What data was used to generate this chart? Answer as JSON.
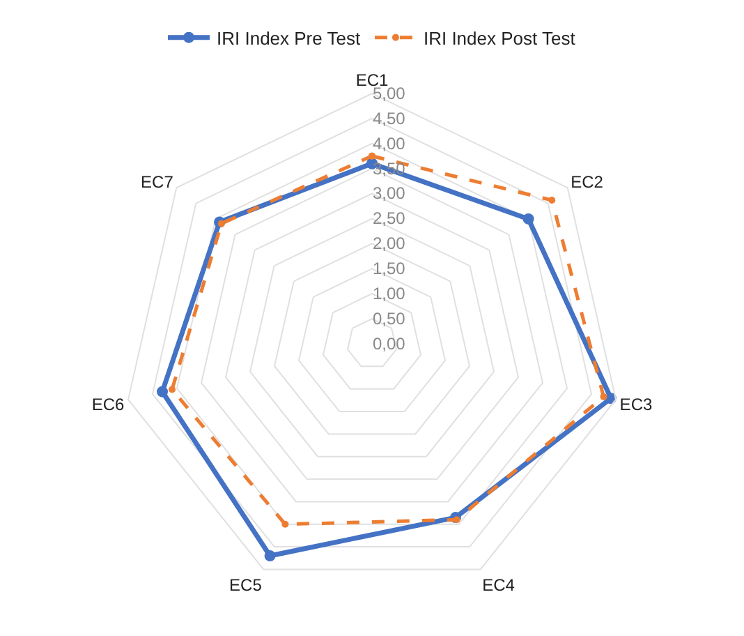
{
  "chart_data": {
    "type": "radar",
    "categories": [
      "EC1",
      "EC2",
      "EC3",
      "EC4",
      "EC5",
      "EC6",
      "EC7"
    ],
    "series": [
      {
        "name": "IRI Index Pre Test",
        "color": "#4472c4",
        "values": [
          3.6,
          4.0,
          4.9,
          3.85,
          4.7,
          4.3,
          3.9
        ],
        "line_style": "solid"
      },
      {
        "name": "IRI Index Post Test",
        "color": "#ed7d31",
        "values": [
          3.75,
          4.6,
          4.75,
          3.9,
          4.0,
          4.1,
          3.85
        ],
        "line_style": "dashed"
      }
    ],
    "ylim": [
      0,
      5
    ],
    "yticks": [
      {
        "value": 0,
        "label": "0,00"
      },
      {
        "value": 0.5,
        "label": "0,50"
      },
      {
        "value": 1,
        "label": "1,00"
      },
      {
        "value": 1.5,
        "label": "1,50"
      },
      {
        "value": 2,
        "label": "2,00"
      },
      {
        "value": 2.5,
        "label": "2,50"
      },
      {
        "value": 3,
        "label": "3,00"
      },
      {
        "value": 3.5,
        "label": "3,50"
      },
      {
        "value": 4,
        "label": "4,00"
      },
      {
        "value": 4.5,
        "label": "4,50"
      },
      {
        "value": 5,
        "label": "5,00"
      }
    ],
    "grid": true,
    "legend": "top",
    "marker": "circle"
  }
}
